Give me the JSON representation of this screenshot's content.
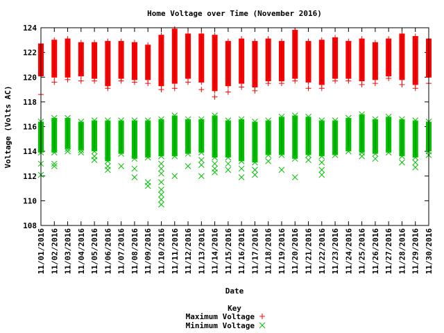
{
  "chart_data": {
    "type": "scatter",
    "title": "Home Voltage over Time (November 2016)",
    "xlabel": "Date",
    "ylabel": "Voltage (Volts AC)",
    "ylim": [
      108,
      124
    ],
    "yticks": [
      108,
      110,
      112,
      114,
      116,
      118,
      120,
      122,
      124
    ],
    "categories": [
      "11/01/2016",
      "11/02/2016",
      "11/03/2016",
      "11/04/2016",
      "11/05/2016",
      "11/06/2016",
      "11/07/2016",
      "11/08/2016",
      "11/09/2016",
      "11/10/2016",
      "11/11/2016",
      "11/12/2016",
      "11/13/2016",
      "11/14/2016",
      "11/15/2016",
      "11/16/2016",
      "11/17/2016",
      "11/18/2016",
      "11/19/2016",
      "11/20/2016",
      "11/21/2016",
      "11/22/2016",
      "11/23/2016",
      "11/24/2016",
      "11/25/2016",
      "11/26/2016",
      "11/27/2016",
      "11/28/2016",
      "11/29/2016",
      "11/30/2016"
    ],
    "grid": false,
    "legend": {
      "title": "Key",
      "placement": "bottom-center"
    },
    "series": [
      {
        "name": "Maximum Voltage",
        "marker": "+",
        "color": "#ff0000",
        "points": [
          {
            "x": "11/01/2016",
            "y": [
              118.6,
              120.1,
              122.7
            ]
          },
          {
            "x": "11/02/2016",
            "y": [
              119.6,
              120.0,
              123.0
            ]
          },
          {
            "x": "11/03/2016",
            "y": [
              119.8,
              120.0,
              123.1
            ]
          },
          {
            "x": "11/04/2016",
            "y": [
              119.7,
              120.1,
              122.8
            ]
          },
          {
            "x": "11/05/2016",
            "y": [
              119.7,
              119.9,
              122.8
            ]
          },
          {
            "x": "11/06/2016",
            "y": [
              119.1,
              119.3,
              122.9
            ]
          },
          {
            "x": "11/07/2016",
            "y": [
              119.7,
              119.9,
              122.9
            ]
          },
          {
            "x": "11/08/2016",
            "y": [
              119.6,
              119.8,
              122.8
            ]
          },
          {
            "x": "11/09/2016",
            "y": [
              119.5,
              119.8,
              122.6
            ]
          },
          {
            "x": "11/10/2016",
            "y": [
              119.0,
              119.3,
              123.4
            ]
          },
          {
            "x": "11/11/2016",
            "y": [
              119.1,
              119.5,
              123.9
            ]
          },
          {
            "x": "11/12/2016",
            "y": [
              119.6,
              119.9,
              123.5
            ]
          },
          {
            "x": "11/13/2016",
            "y": [
              119.0,
              119.6,
              123.5
            ]
          },
          {
            "x": "11/14/2016",
            "y": [
              118.4,
              118.9,
              123.4
            ]
          },
          {
            "x": "11/15/2016",
            "y": [
              118.8,
              119.3,
              122.9
            ]
          },
          {
            "x": "11/16/2016",
            "y": [
              119.2,
              119.5,
              123.1
            ]
          },
          {
            "x": "11/17/2016",
            "y": [
              118.9,
              119.2,
              122.9
            ]
          },
          {
            "x": "11/18/2016",
            "y": [
              119.5,
              119.7,
              123.1
            ]
          },
          {
            "x": "11/19/2016",
            "y": [
              119.5,
              119.7,
              122.9
            ]
          },
          {
            "x": "11/20/2016",
            "y": [
              119.7,
              119.9,
              123.8
            ]
          },
          {
            "x": "11/21/2016",
            "y": [
              119.1,
              119.6,
              122.9
            ]
          },
          {
            "x": "11/22/2016",
            "y": [
              119.1,
              119.4,
              123.0
            ]
          },
          {
            "x": "11/23/2016",
            "y": [
              119.7,
              119.9,
              123.2
            ]
          },
          {
            "x": "11/24/2016",
            "y": [
              119.7,
              119.9,
              122.9
            ]
          },
          {
            "x": "11/25/2016",
            "y": [
              119.4,
              119.7,
              123.1
            ]
          },
          {
            "x": "11/26/2016",
            "y": [
              119.5,
              119.8,
              122.8
            ]
          },
          {
            "x": "11/27/2016",
            "y": [
              119.9,
              120.1,
              123.1
            ]
          },
          {
            "x": "11/28/2016",
            "y": [
              119.4,
              119.8,
              123.5
            ]
          },
          {
            "x": "11/29/2016",
            "y": [
              119.1,
              119.4,
              123.3
            ]
          },
          {
            "x": "11/30/2016",
            "y": [
              119.5,
              120.0,
              123.1
            ]
          }
        ]
      },
      {
        "name": "Minimum Voltage",
        "marker": "x",
        "color": "#00c000",
        "points": [
          {
            "x": "11/01/2016",
            "y": [
              112.1,
              113.0,
              113.9,
              116.4
            ]
          },
          {
            "x": "11/02/2016",
            "y": [
              112.8,
              113.0,
              113.9,
              116.7
            ]
          },
          {
            "x": "11/03/2016",
            "y": [
              114.0,
              114.2,
              116.7
            ]
          },
          {
            "x": "11/04/2016",
            "y": [
              113.9,
              114.1,
              116.4
            ]
          },
          {
            "x": "11/05/2016",
            "y": [
              113.3,
              113.6,
              114.0,
              116.5
            ]
          },
          {
            "x": "11/06/2016",
            "y": [
              112.5,
              112.8,
              113.2,
              116.5
            ]
          },
          {
            "x": "11/07/2016",
            "y": [
              112.8,
              113.8,
              116.5
            ]
          },
          {
            "x": "11/08/2016",
            "y": [
              111.9,
              112.6,
              113.4,
              116.5
            ]
          },
          {
            "x": "11/09/2016",
            "y": [
              111.2,
              111.5,
              113.5,
              116.5
            ]
          },
          {
            "x": "11/10/2016",
            "y": [
              109.7,
              110.1,
              110.5,
              110.9,
              111.5,
              112.2,
              112.6,
              113.0,
              113.6,
              116.6
            ]
          },
          {
            "x": "11/11/2016",
            "y": [
              112.0,
              113.6,
              116.9
            ]
          },
          {
            "x": "11/12/2016",
            "y": [
              112.8,
              113.8,
              116.6
            ]
          },
          {
            "x": "11/13/2016",
            "y": [
              112.0,
              112.9,
              113.3,
              113.9,
              116.6
            ]
          },
          {
            "x": "11/14/2016",
            "y": [
              112.3,
              112.6,
              113.0,
              113.5,
              116.9
            ]
          },
          {
            "x": "11/15/2016",
            "y": [
              112.5,
              113.0,
              113.5,
              116.5
            ]
          },
          {
            "x": "11/16/2016",
            "y": [
              111.9,
              112.6,
              113.2,
              116.6
            ]
          },
          {
            "x": "11/17/2016",
            "y": [
              112.1,
              112.5,
              113.1,
              116.4
            ]
          },
          {
            "x": "11/18/2016",
            "y": [
              113.2,
              113.7,
              116.5
            ]
          },
          {
            "x": "11/19/2016",
            "y": [
              112.5,
              113.7,
              116.8
            ]
          },
          {
            "x": "11/20/2016",
            "y": [
              111.9,
              113.4,
              116.9
            ]
          },
          {
            "x": "11/21/2016",
            "y": [
              113.3,
              113.7,
              116.8
            ]
          },
          {
            "x": "11/22/2016",
            "y": [
              112.1,
              112.5,
              113.1,
              113.6,
              116.5
            ]
          },
          {
            "x": "11/23/2016",
            "y": [
              113.7,
              116.5
            ]
          },
          {
            "x": "11/24/2016",
            "y": [
              114.0,
              116.7
            ]
          },
          {
            "x": "11/25/2016",
            "y": [
              113.6,
              113.9,
              117.0
            ]
          },
          {
            "x": "11/26/2016",
            "y": [
              113.4,
              113.8,
              116.6
            ]
          },
          {
            "x": "11/27/2016",
            "y": [
              113.9,
              116.8
            ]
          },
          {
            "x": "11/28/2016",
            "y": [
              113.1,
              113.6,
              116.6
            ]
          },
          {
            "x": "11/29/2016",
            "y": [
              112.7,
              113.1,
              113.5,
              116.5
            ]
          },
          {
            "x": "11/30/2016",
            "y": [
              113.7,
              114.0,
              116.4
            ]
          }
        ]
      }
    ]
  }
}
